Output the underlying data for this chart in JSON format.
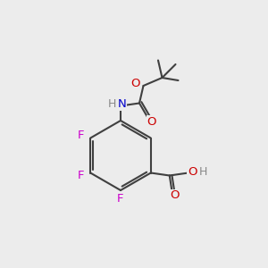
{
  "bg_color": "#ececec",
  "bond_color": "#404040",
  "bond_lw": 1.5,
  "figsize": [
    3.0,
    3.0
  ],
  "dpi": 100,
  "colors": {
    "F": "#cc00cc",
    "N": "#0000cc",
    "O": "#cc0000",
    "H": "#888888",
    "C": "#404040"
  },
  "font_size": 9.5
}
